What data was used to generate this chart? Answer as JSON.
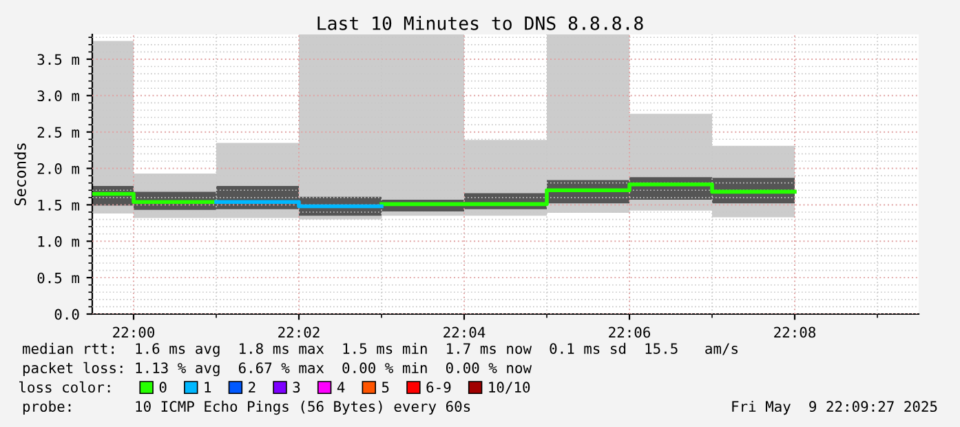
{
  "chart_data": {
    "type": "step",
    "title": "Last 10 Minutes to DNS 8.8.8.8",
    "ylabel": "Seconds",
    "x": [
      21.991667,
      22.0,
      22.016667,
      22.033333,
      22.05,
      22.066667,
      22.083333,
      22.1,
      22.116667,
      22.133333
    ],
    "xlim": [
      21.991667,
      22.158333
    ],
    "xticks": [
      {
        "value": 22.0,
        "label": "22:00"
      },
      {
        "value": 22.033333,
        "label": "22:02"
      },
      {
        "value": 22.066667,
        "label": "22:04"
      },
      {
        "value": 22.1,
        "label": "22:06"
      },
      {
        "value": 22.133333,
        "label": "22:08"
      }
    ],
    "ylim": [
      0,
      3.84
    ],
    "yticks": [
      {
        "value": 0,
        "label": "0.0"
      },
      {
        "value": 0.5,
        "label": "0.5 m"
      },
      {
        "value": 1.0,
        "label": "1.0 m"
      },
      {
        "value": 1.5,
        "label": "1.5 m"
      },
      {
        "value": 2.0,
        "label": "2.0 m"
      },
      {
        "value": 2.5,
        "label": "2.5 m"
      },
      {
        "value": 3.0,
        "label": "3.0 m"
      },
      {
        "value": 3.5,
        "label": "3.5 m"
      }
    ],
    "grid": true,
    "legend": "bottom",
    "legend_title": "loss color:",
    "series": [
      {
        "type": "bar",
        "color": "#cccccc",
        "x": [
          21.995833,
          22.008333,
          22.025,
          22.041667,
          22.058333,
          22.075,
          22.091667,
          22.108333,
          22.125
        ],
        "base": [
          1.38,
          1.32,
          1.32,
          1.3,
          1.35,
          1.35,
          1.39,
          1.42,
          1.33
        ],
        "values": [
          2.37,
          0.61,
          1.03,
          2.54,
          2.49,
          1.04,
          2.45,
          1.33,
          0.98
        ]
      },
      {
        "type": "bar",
        "color": "#555555",
        "x": [
          21.995833,
          22.008333,
          22.025,
          22.041667,
          22.058333,
          22.075,
          22.091667,
          22.108333,
          22.125
        ],
        "base": [
          1.49,
          1.43,
          1.44,
          1.35,
          1.41,
          1.44,
          1.52,
          1.57,
          1.52
        ],
        "values": [
          0.27,
          0.25,
          0.32,
          0.26,
          0.16,
          0.22,
          0.32,
          0.31,
          0.35
        ]
      },
      {
        "name": "0",
        "color": "#26ff00",
        "values": [
          1.65,
          1.54,
          null,
          null,
          1.51,
          1.51,
          1.7,
          1.78,
          1.68,
          1.68
        ]
      },
      {
        "name": "1",
        "color": "#00b8ff",
        "x": [
          22.016667,
          22.033333,
          22.05
        ],
        "values": [
          1.54,
          1.48,
          1.48
        ]
      },
      {
        "name": "2",
        "color": "#0059ff",
        "values": [
          null,
          null,
          null,
          null,
          null,
          null,
          null,
          null,
          null,
          null
        ]
      },
      {
        "name": "3",
        "color": "#7e00ff",
        "values": [
          null,
          null,
          null,
          null,
          null,
          null,
          null,
          null,
          null,
          null
        ]
      },
      {
        "name": "4",
        "color": "#ff00ff",
        "values": [
          null,
          null,
          null,
          null,
          null,
          null,
          null,
          null,
          null,
          null
        ]
      },
      {
        "name": "5",
        "color": "#ff5500",
        "values": [
          null,
          null,
          null,
          null,
          null,
          null,
          null,
          null,
          null,
          null
        ]
      },
      {
        "name": "6-9",
        "color": "#ff0000",
        "values": [
          null,
          null,
          null,
          null,
          null,
          null,
          null,
          null,
          null,
          null
        ]
      },
      {
        "name": "10/10",
        "color": "#a10000",
        "values": [
          null,
          null,
          null,
          null,
          null,
          null,
          null,
          null,
          null,
          null
        ]
      }
    ],
    "annotations": [
      "median rtt:  1.6 ms avg  1.8 ms max  1.5 ms min  1.7 ms now  0.1 ms sd  15.5   am/s",
      "packet loss: 1.13 % avg  6.67 % max  0.00 % min  0.00 % now",
      "probe:       10 ICMP Echo Pings (56 Bytes) every 60s",
      "Fri May  9 22:09:27 2025"
    ]
  }
}
